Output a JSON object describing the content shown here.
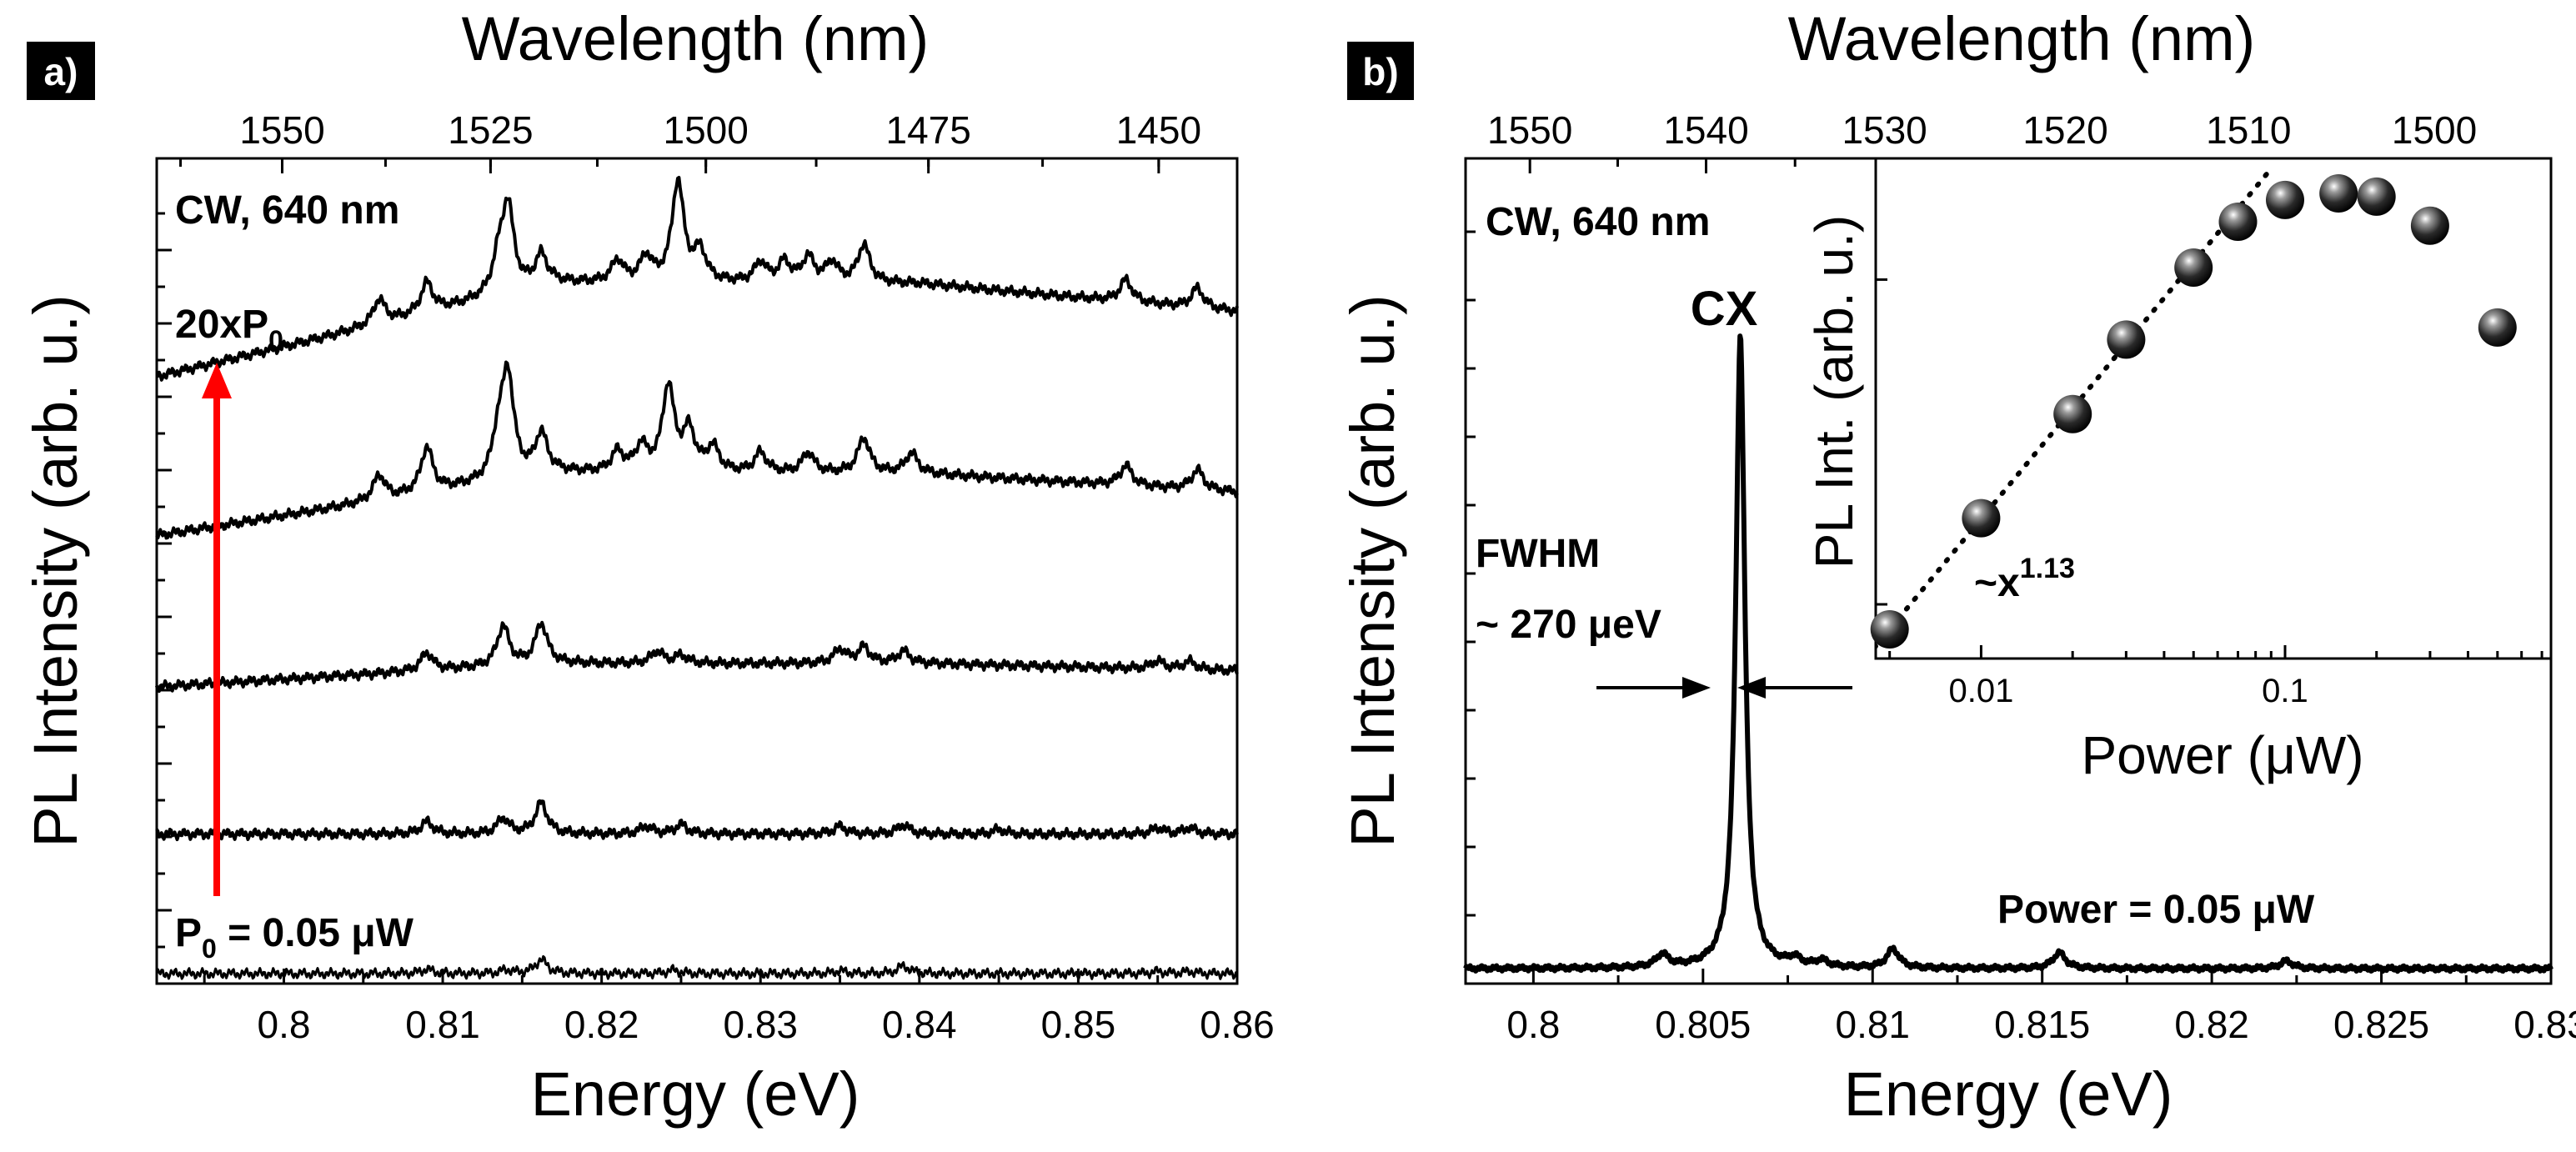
{
  "colors": {
    "trace": "#000000",
    "arrow": "#ff0000",
    "panel_label_bg": "#000000",
    "panel_label_text": "#ffffff"
  },
  "chart_data": [
    {
      "panel": "a)",
      "type": "line",
      "xlabel": "Energy (eV)",
      "ylabel": "PL Intensity (arb. u.)",
      "x2label": "Wavelength (nm)",
      "xlim": [
        0.792,
        0.86
      ],
      "x_ticks": [
        0.8,
        0.81,
        0.82,
        0.83,
        0.84,
        0.85,
        0.86
      ],
      "x_tick_labels": [
        "0.8",
        "0.81",
        "0.82",
        "0.83",
        "0.84",
        "0.85",
        "0.86"
      ],
      "top_ticks_nm": [
        1550,
        1525,
        1500,
        1475,
        1450
      ],
      "top_tick_labels": [
        "1550",
        "1525",
        "1500",
        "1475",
        "1450"
      ],
      "annotations": {
        "top_label": "CW, 640 nm",
        "upper_power_base": "20xP",
        "upper_power_sub": "0",
        "lower_power_base": "P",
        "lower_power_sub": "0",
        "lower_power_rest": " = 0.05 μW"
      },
      "series": [
        {
          "baseline": 0.0,
          "peaks": [
            [
              0.809,
              0.3
            ],
            [
              0.814,
              0.25
            ],
            [
              0.8162,
              1.0
            ],
            [
              0.8245,
              0.25
            ],
            [
              0.835,
              0.2
            ],
            [
              0.839,
              0.55
            ],
            [
              0.855,
              0.15
            ],
            [
              0.857,
              0.15
            ]
          ],
          "scale": 18,
          "hump": 0
        },
        {
          "baseline": 0.18,
          "peaks": [
            [
              0.809,
              0.4
            ],
            [
              0.8138,
              0.5
            ],
            [
              0.8162,
              1.0
            ],
            [
              0.8228,
              0.25
            ],
            [
              0.825,
              0.3
            ],
            [
              0.835,
              0.25
            ],
            [
              0.839,
              0.3
            ],
            [
              0.845,
              0.15
            ],
            [
              0.855,
              0.2
            ],
            [
              0.857,
              0.2
            ]
          ],
          "scale": 40,
          "hump": 0
        },
        {
          "baseline": 0.37,
          "peaks": [
            [
              0.809,
              0.45
            ],
            [
              0.8138,
              1.0
            ],
            [
              0.8162,
              1.0
            ],
            [
              0.8235,
              0.3
            ],
            [
              0.825,
              0.2
            ],
            [
              0.835,
              0.35
            ],
            [
              0.8365,
              0.4
            ],
            [
              0.839,
              0.3
            ],
            [
              0.855,
              0.2
            ],
            [
              0.857,
              0.2
            ]
          ],
          "scale": 52,
          "hump": 0.03
        },
        {
          "baseline": 0.565,
          "peaks": [
            [
              0.806,
              0.25
            ],
            [
              0.809,
              0.45
            ],
            [
              0.8135,
              0.4
            ],
            [
              0.8141,
              1.0
            ],
            [
              0.8162,
              0.4
            ],
            [
              0.821,
              0.2
            ],
            [
              0.8225,
              0.25
            ],
            [
              0.8242,
              0.85
            ],
            [
              0.8255,
              0.4
            ],
            [
              0.827,
              0.25
            ],
            [
              0.83,
              0.2
            ],
            [
              0.833,
              0.2
            ],
            [
              0.8365,
              0.35
            ],
            [
              0.8395,
              0.2
            ],
            [
              0.853,
              0.2
            ],
            [
              0.8575,
              0.2
            ]
          ],
          "scale": 130,
          "hump": 0.08
        },
        {
          "baseline": 0.77,
          "peaks": [
            [
              0.806,
              0.25
            ],
            [
              0.809,
              0.3
            ],
            [
              0.8135,
              0.3
            ],
            [
              0.8141,
              0.85
            ],
            [
              0.8162,
              0.3
            ],
            [
              0.821,
              0.22
            ],
            [
              0.8228,
              0.25
            ],
            [
              0.8248,
              1.0
            ],
            [
              0.8262,
              0.3
            ],
            [
              0.83,
              0.2
            ],
            [
              0.8315,
              0.2
            ],
            [
              0.833,
              0.25
            ],
            [
              0.8345,
              0.2
            ],
            [
              0.8365,
              0.38
            ],
            [
              0.853,
              0.22
            ],
            [
              0.8575,
              0.2
            ]
          ],
          "scale": 130,
          "hump": 0.12
        }
      ]
    },
    {
      "panel": "b)",
      "type": "line",
      "xlabel": "Energy (eV)",
      "ylabel": "PL Intensity (arb. u.)",
      "x2label": "Wavelength (nm)",
      "xlim": [
        0.798,
        0.83
      ],
      "x_ticks": [
        0.8,
        0.805,
        0.81,
        0.815,
        0.82,
        0.825,
        0.83
      ],
      "x_tick_labels": [
        "0.8",
        "0.805",
        "0.81",
        "0.815",
        "0.82",
        "0.825",
        "0.83"
      ],
      "top_ticks_nm": [
        1550,
        1540,
        1530,
        1520,
        1510,
        1500
      ],
      "top_tick_labels": [
        "1550",
        "1540",
        "1530",
        "1520",
        "1510",
        "1500"
      ],
      "annotations": {
        "top_label": "CW, 640 nm",
        "peak_label": "CX",
        "fwhm_label": "FWHM",
        "fwhm_value": "~ 270 μeV",
        "power_label": "Power = 0.05 μW"
      },
      "peaks": [
        [
          0.8038,
          0.02
        ],
        [
          0.8061,
          1.0
        ],
        [
          0.8077,
          0.012
        ],
        [
          0.8085,
          0.01
        ],
        [
          0.8106,
          0.03
        ],
        [
          0.8155,
          0.025
        ],
        [
          0.8222,
          0.012
        ]
      ],
      "inset": {
        "type": "scatter",
        "xlabel": "Power (μW)",
        "ylabel": "PL Int. (arb. u.)",
        "xscale": "log",
        "yscale": "log",
        "xlim": [
          0.0045,
          0.75
        ],
        "x_ticks": [
          0.01,
          0.1
        ],
        "x_tick_labels": [
          "0.01",
          "0.1"
        ],
        "fit_label_base": "~x",
        "fit_label_exp": "1.13",
        "fit_exponent": 1.13,
        "points": [
          [
            0.005,
            1.0
          ],
          [
            0.01,
            2.2
          ],
          [
            0.02,
            4.6
          ],
          [
            0.03,
            7.8
          ],
          [
            0.05,
            13.0
          ],
          [
            0.07,
            18.0
          ],
          [
            0.1,
            21.0
          ],
          [
            0.15,
            22.0
          ],
          [
            0.2,
            21.5
          ],
          [
            0.3,
            17.5
          ],
          [
            0.5,
            8.5
          ]
        ]
      }
    }
  ]
}
